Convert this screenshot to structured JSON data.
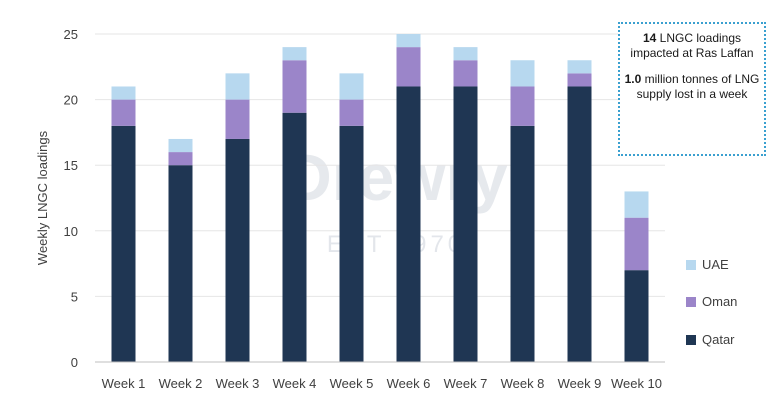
{
  "watermark": {
    "brand": "Drewry",
    "est": "EST 1970"
  },
  "annotation": {
    "line1_bold": "14",
    "line1_rest": " LNGC loadings impacted at Ras Laffan",
    "line2_bold": "1.0",
    "line2_rest": " million tonnes of LNG supply lost in a week"
  },
  "colors": {
    "Qatar": "#1f3653",
    "Oman": "#9b85c9",
    "UAE": "#b7d8ef",
    "grid": "#e6e6e6",
    "axis": "#bfbfbf"
  },
  "chart_data": {
    "type": "bar",
    "stacked": true,
    "title": "",
    "xlabel": "",
    "ylabel": "Weekly LNGC loadings",
    "ylim": [
      0,
      25
    ],
    "yticks": [
      0,
      5,
      10,
      15,
      20,
      25
    ],
    "grid": true,
    "legend_position": "right",
    "categories": [
      "Week 1",
      "Week 2",
      "Week 3",
      "Week 4",
      "Week 5",
      "Week 6",
      "Week 7",
      "Week 8",
      "Week 9",
      "Week 10"
    ],
    "series": [
      {
        "name": "Qatar",
        "values": [
          18,
          15,
          17,
          19,
          18,
          21,
          21,
          18,
          21,
          7
        ]
      },
      {
        "name": "Oman",
        "values": [
          2,
          1,
          3,
          4,
          2,
          3,
          2,
          3,
          1,
          4
        ]
      },
      {
        "name": "UAE",
        "values": [
          1,
          1,
          2,
          1,
          2,
          1,
          1,
          2,
          1,
          2
        ]
      }
    ],
    "legend": [
      "UAE",
      "Oman",
      "Qatar"
    ]
  }
}
